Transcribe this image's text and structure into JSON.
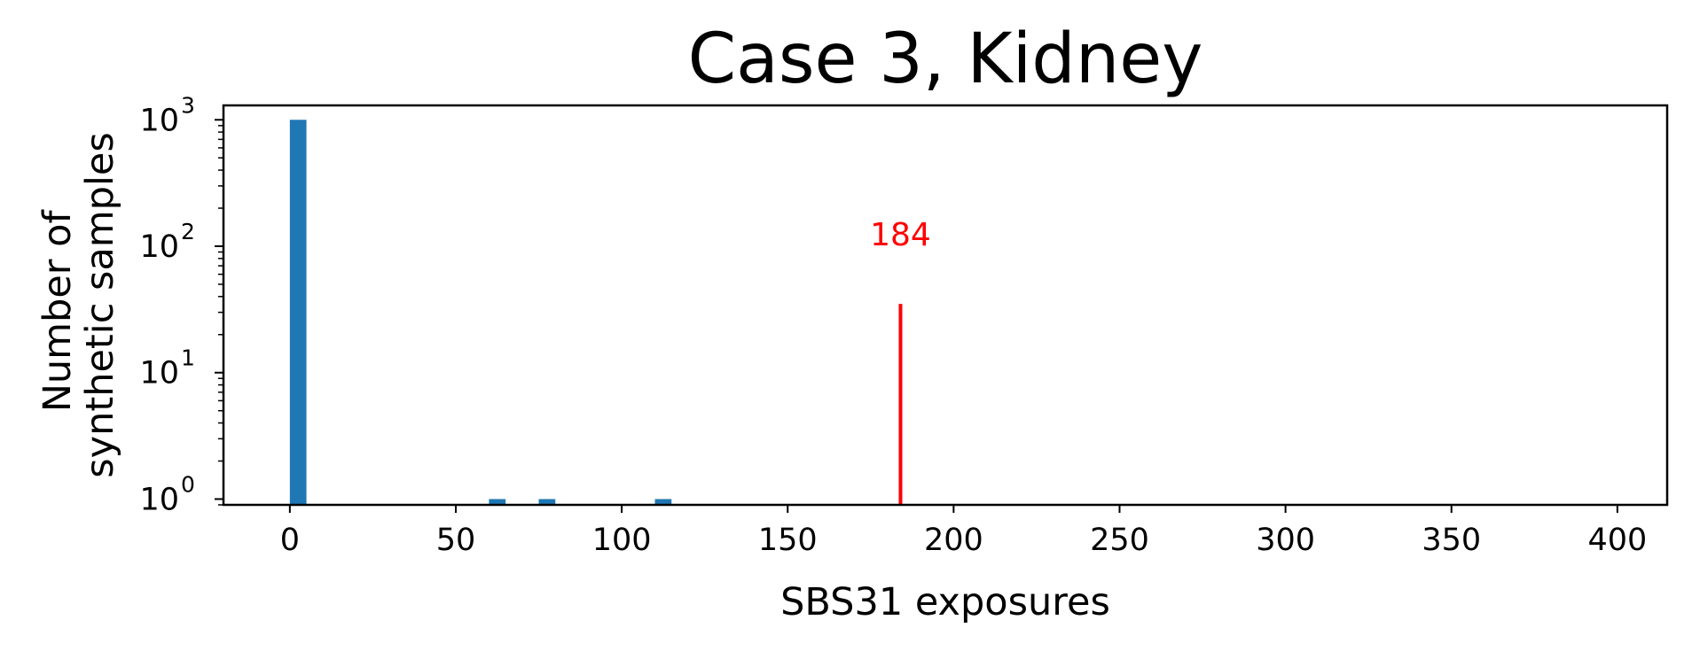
{
  "chart_data": {
    "type": "bar",
    "title": "Case 3, Kidney",
    "xlabel": "SBS31 exposures",
    "ylabel_lines": [
      "Number of",
      "synthetic samples"
    ],
    "xlim": [
      -20,
      415
    ],
    "ylim": [
      0.9,
      1300
    ],
    "yscale": "log",
    "x_ticks": [
      0,
      50,
      100,
      150,
      200,
      250,
      300,
      350,
      400
    ],
    "y_tick_exponents": [
      0,
      1,
      2,
      3
    ],
    "y_tick_base": "10",
    "bin_width": 5,
    "bars": [
      {
        "x": 0,
        "value": 1000
      },
      {
        "x": 60,
        "value": 1
      },
      {
        "x": 75,
        "value": 1
      },
      {
        "x": 110,
        "value": 1
      }
    ],
    "bar_color": "#1f77b4",
    "reference_line": {
      "x": 184,
      "top_value": 35,
      "label": "184",
      "color": "#ff0000"
    },
    "grid": false
  }
}
